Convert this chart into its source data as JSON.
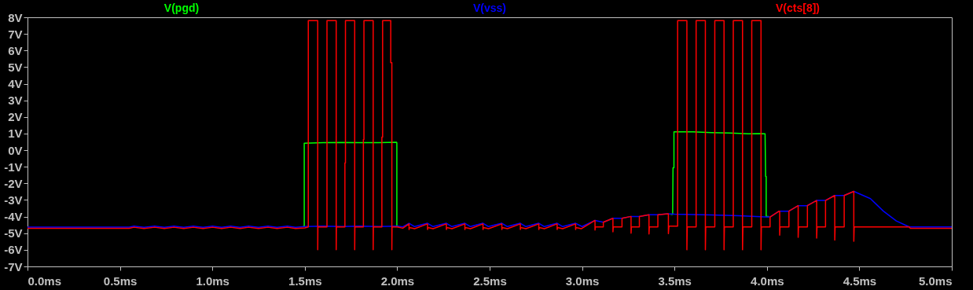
{
  "chart_data": {
    "type": "line",
    "legend": "top",
    "xlim": [
      0,
      5
    ],
    "ylim": [
      -7,
      8
    ],
    "xticks": [
      {
        "value": 0,
        "label": "0.0ms"
      },
      {
        "value": 0.5,
        "label": "0.5ms"
      },
      {
        "value": 1,
        "label": "1.0ms"
      },
      {
        "value": 1.5,
        "label": "1.5ms"
      },
      {
        "value": 2,
        "label": "2.0ms"
      },
      {
        "value": 2.5,
        "label": "2.5ms"
      },
      {
        "value": 3,
        "label": "3.0ms"
      },
      {
        "value": 3.5,
        "label": "3.5ms"
      },
      {
        "value": 4,
        "label": "4.0ms"
      },
      {
        "value": 4.5,
        "label": "4.5ms"
      },
      {
        "value": 5,
        "label": "5.0ms"
      }
    ],
    "yticks": [
      {
        "value": -7,
        "label": "-7V"
      },
      {
        "value": -6,
        "label": "-6V"
      },
      {
        "value": -5,
        "label": "-5V"
      },
      {
        "value": -4,
        "label": "-4V"
      },
      {
        "value": -3,
        "label": "-3V"
      },
      {
        "value": -2,
        "label": "-2V"
      },
      {
        "value": -1,
        "label": "-1V"
      },
      {
        "value": 0,
        "label": "0V"
      },
      {
        "value": 1,
        "label": "1V"
      },
      {
        "value": 2,
        "label": "2V"
      },
      {
        "value": 3,
        "label": "3V"
      },
      {
        "value": 4,
        "label": "4V"
      },
      {
        "value": 5,
        "label": "5V"
      },
      {
        "value": 6,
        "label": "6V"
      },
      {
        "value": 7,
        "label": "7V"
      },
      {
        "value": 8,
        "label": "8V"
      }
    ],
    "series": [
      {
        "name": "V(pgd)",
        "color": "#00ff00",
        "x": [
          1.49,
          1.497,
          1.497,
          1.6,
          1.7,
          1.8,
          1.9,
          1.995,
          1.998,
          1.998,
          2.01,
          2.5,
          3.48,
          3.49,
          3.492,
          3.497,
          3.497,
          3.6,
          3.7,
          3.8,
          3.9,
          3.96,
          3.99,
          3.993,
          3.996,
          3.996,
          4.01
        ],
        "values": [
          -4.6,
          -4.6,
          0.42,
          0.45,
          0.47,
          0.45,
          0.45,
          0.48,
          0.45,
          -4.6,
          -4.6,
          null,
          -3.86,
          -3.86,
          -1.06,
          -1.06,
          1.1,
          1.1,
          1.06,
          1.03,
          0.99,
          1.0,
          0.98,
          -1.58,
          -1.58,
          -4.0,
          -4.0
        ]
      },
      {
        "name": "V(vss)",
        "color": "#0000ff",
        "x": [
          0,
          0.55,
          0.576,
          0.63,
          0.688,
          0.74,
          0.792,
          0.845,
          0.897,
          0.95,
          1.001,
          1.05,
          1.099,
          1.15,
          1.196,
          1.25,
          1.301,
          1.35,
          1.406,
          1.45,
          1.5,
          1.6,
          1.7,
          1.8,
          1.9,
          2.0,
          2.03,
          2.064,
          2.094,
          2.164,
          2.194,
          2.266,
          2.296,
          2.366,
          2.396,
          2.464,
          2.494,
          2.566,
          2.596,
          2.666,
          2.696,
          2.766,
          2.796,
          2.865,
          2.895,
          2.965,
          3.0,
          3.07,
          3.115,
          3.167,
          3.216,
          3.265,
          3.31,
          3.362,
          3.41,
          3.461,
          3.5,
          3.7,
          3.85,
          3.99,
          4.017,
          4.066,
          4.119,
          4.17,
          4.218,
          4.268,
          4.316,
          4.365,
          4.417,
          4.47,
          4.56,
          4.63,
          4.7,
          4.77,
          5.0
        ],
        "values": [
          -4.63,
          -4.63,
          -4.58,
          -4.65,
          -4.58,
          -4.65,
          -4.58,
          -4.65,
          -4.58,
          -4.65,
          -4.58,
          -4.65,
          -4.58,
          -4.65,
          -4.58,
          -4.65,
          -4.58,
          -4.65,
          -4.58,
          -4.65,
          -4.6,
          -4.57,
          -4.6,
          -4.57,
          -4.6,
          -4.57,
          -4.62,
          -4.4,
          -4.6,
          -4.4,
          -4.6,
          -4.4,
          -4.6,
          -4.4,
          -4.6,
          -4.4,
          -4.6,
          -4.4,
          -4.6,
          -4.4,
          -4.6,
          -4.4,
          -4.6,
          -4.4,
          -4.6,
          -4.4,
          -4.6,
          -4.23,
          -4.34,
          -4.1,
          -4.1,
          -3.99,
          -3.99,
          -3.89,
          -3.89,
          -3.83,
          -3.85,
          -3.9,
          -3.95,
          -4.02,
          -4.02,
          -3.67,
          -3.67,
          -3.34,
          -3.34,
          -3.03,
          -3.03,
          -2.73,
          -2.73,
          -2.48,
          -2.92,
          -3.67,
          -4.26,
          -4.62,
          -4.62
        ]
      },
      {
        "name": "V(cts[8])",
        "color": "#ff0000",
        "x": [
          0,
          0.55,
          0.576,
          0.63,
          0.688,
          0.74,
          0.792,
          0.845,
          0.897,
          0.95,
          1.001,
          1.05,
          1.099,
          1.15,
          1.196,
          1.25,
          1.301,
          1.35,
          1.406,
          1.45,
          1.5,
          1.519,
          1.519,
          1.57,
          1.57,
          1.571,
          1.62,
          1.62,
          1.67,
          1.67,
          1.671,
          1.717,
          1.717,
          1.72,
          1.72,
          1.77,
          1.77,
          1.771,
          1.817,
          1.817,
          1.82,
          1.82,
          1.87,
          1.87,
          1.871,
          1.917,
          1.917,
          1.921,
          1.921,
          1.965,
          1.965,
          1.971,
          1.971,
          1.972,
          2.0,
          2.03,
          2.064,
          2.064,
          2.066,
          2.094,
          2.164,
          2.164,
          2.166,
          2.194,
          2.266,
          2.266,
          2.268,
          2.296,
          2.366,
          2.366,
          2.368,
          2.396,
          2.464,
          2.464,
          2.466,
          2.494,
          2.566,
          2.566,
          2.568,
          2.596,
          2.666,
          2.666,
          2.668,
          2.696,
          2.766,
          2.766,
          2.768,
          2.796,
          2.865,
          2.865,
          2.867,
          2.895,
          2.965,
          2.965,
          2.967,
          2.995,
          3.07,
          3.07,
          3.072,
          3.115,
          3.115,
          3.167,
          3.167,
          3.169,
          3.216,
          3.216,
          3.265,
          3.265,
          3.267,
          3.31,
          3.31,
          3.362,
          3.362,
          3.364,
          3.41,
          3.41,
          3.467,
          3.467,
          3.47,
          3.517,
          3.517,
          3.567,
          3.567,
          3.569,
          3.617,
          3.617,
          3.667,
          3.667,
          3.669,
          3.718,
          3.718,
          3.768,
          3.768,
          3.77,
          3.818,
          3.818,
          3.868,
          3.868,
          3.87,
          3.918,
          3.918,
          3.968,
          3.968,
          3.97,
          4.017,
          4.017,
          4.066,
          4.069,
          4.069,
          4.071,
          4.119,
          4.119,
          4.169,
          4.169,
          4.171,
          4.219,
          4.219,
          4.269,
          4.269,
          4.271,
          4.317,
          4.317,
          4.367,
          4.367,
          4.369,
          4.418,
          4.418,
          4.47,
          4.47,
          4.472,
          4.77,
          4.775,
          5.0
        ],
        "values": [
          -4.7,
          -4.7,
          -4.64,
          -4.72,
          -4.64,
          -4.72,
          -4.64,
          -4.72,
          -4.64,
          -4.72,
          -4.64,
          -4.72,
          -4.64,
          -4.72,
          -4.64,
          -4.72,
          -4.64,
          -4.72,
          -4.64,
          -4.72,
          -4.68,
          -4.62,
          7.8,
          7.8,
          -6.0,
          -4.62,
          -4.62,
          7.8,
          7.8,
          -6.0,
          -4.62,
          -4.62,
          -0.76,
          -0.76,
          7.8,
          7.8,
          -6.0,
          -4.62,
          -4.62,
          0.64,
          0.64,
          7.8,
          7.8,
          -6.0,
          -4.62,
          -4.62,
          0.78,
          0.78,
          7.8,
          7.8,
          5.27,
          5.27,
          -6.0,
          -4.62,
          -4.62,
          -4.7,
          -4.44,
          -4.78,
          -4.66,
          -4.73,
          -4.44,
          -4.78,
          -4.66,
          -4.73,
          -4.44,
          -4.78,
          -4.66,
          -4.73,
          -4.44,
          -4.78,
          -4.66,
          -4.73,
          -4.44,
          -4.78,
          -4.66,
          -4.73,
          -4.44,
          -4.78,
          -4.66,
          -4.73,
          -4.44,
          -4.78,
          -4.66,
          -4.73,
          -4.44,
          -4.78,
          -4.66,
          -4.73,
          -4.44,
          -4.78,
          -4.66,
          -4.73,
          -4.44,
          -4.78,
          -4.66,
          -4.73,
          -4.23,
          -4.81,
          -4.62,
          -4.62,
          -4.34,
          -4.1,
          -4.92,
          -4.62,
          -4.62,
          -4.1,
          -3.99,
          -5.0,
          -4.62,
          -4.62,
          -3.99,
          -3.89,
          -5.05,
          -4.62,
          -4.62,
          -3.89,
          -3.83,
          -5.03,
          -4.57,
          -4.57,
          7.8,
          7.8,
          -6.0,
          -4.62,
          -4.62,
          7.8,
          7.8,
          -6.0,
          -4.62,
          -4.62,
          7.8,
          7.8,
          -6.0,
          -4.62,
          -4.62,
          7.8,
          7.8,
          -6.0,
          -4.62,
          -4.62,
          7.8,
          7.8,
          -6.0,
          -4.62,
          -4.62,
          -4.02,
          -3.67,
          -3.67,
          -5.12,
          -4.62,
          -4.62,
          -3.67,
          -3.34,
          -5.25,
          -4.62,
          -4.62,
          -3.34,
          -3.03,
          -5.3,
          -4.62,
          -4.62,
          -3.03,
          -2.73,
          -5.41,
          -4.62,
          -4.62,
          -2.73,
          -2.48,
          -5.49,
          -4.62,
          -4.62,
          -4.7,
          -4.7
        ]
      }
    ]
  }
}
